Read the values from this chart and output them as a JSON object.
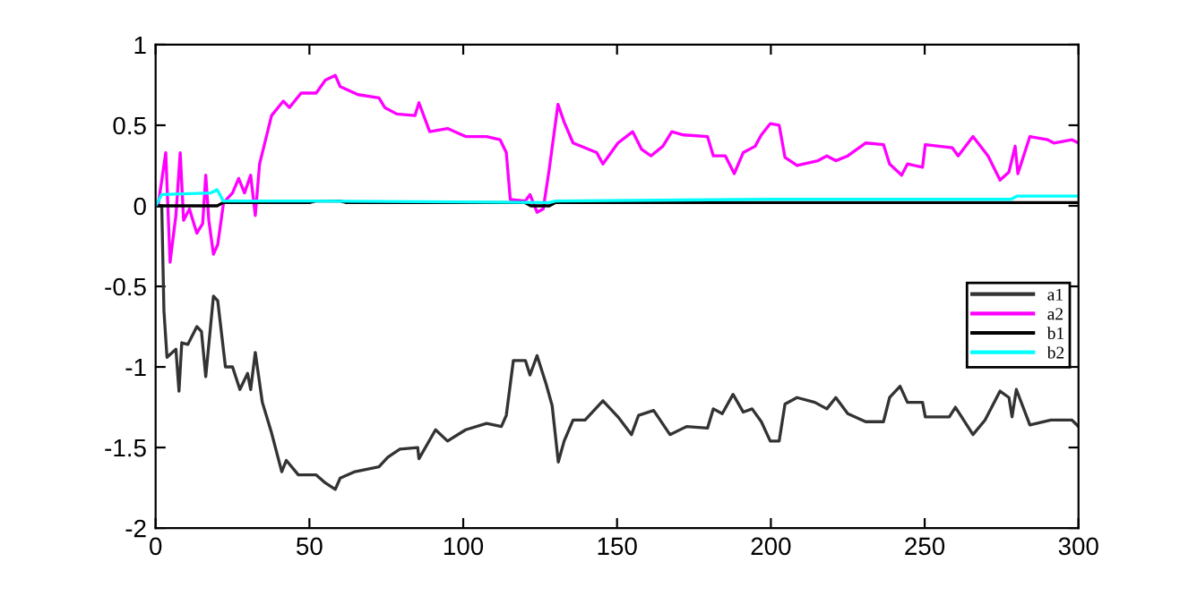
{
  "chart_data": {
    "type": "line",
    "xlim": [
      0,
      300
    ],
    "ylim": [
      -2,
      1
    ],
    "xticks": [
      0,
      50,
      100,
      150,
      200,
      250,
      300
    ],
    "yticks": [
      -2,
      -1.5,
      -1,
      -0.5,
      0,
      0.5,
      1
    ],
    "grid": false,
    "legend": "right",
    "line_style": "solid",
    "series": [
      {
        "name": "a1",
        "color": "#333333",
        "x": [
          0,
          2,
          2.7,
          3.7,
          6.6,
          7.6,
          8.5,
          10.5,
          13.4,
          14.9,
          16.3,
          18.8,
          20.2,
          22.7,
          25,
          27.4,
          29.9,
          30.9,
          32.4,
          34.7,
          37.7,
          41,
          42.5,
          46.4,
          52.2,
          55.2,
          58.4,
          60,
          64.8,
          72.6,
          75.5,
          79.4,
          85.2,
          85.6,
          91,
          94.9,
          100.8,
          107.6,
          112.4,
          114,
          116.3,
          120.2,
          121.7,
          124,
          127,
          128.9,
          130.9,
          132.8,
          135.7,
          139.6,
          145.4,
          150.3,
          154.7,
          157,
          161.9,
          167.2,
          172.6,
          179.4,
          181.3,
          184.2,
          187.7,
          191,
          193.9,
          196.9,
          199.8,
          202.7,
          204.6,
          208.5,
          214.3,
          218.2,
          221.1,
          225,
          230.8,
          236.6,
          238.6,
          242,
          244.4,
          249.3,
          250.2,
          258,
          260,
          265.7,
          269.6,
          274.5,
          277.4,
          278.4,
          279.8,
          284.2,
          291,
          297.9,
          300
        ],
        "values": [
          0,
          0,
          -0.65,
          -0.94,
          -0.89,
          -1.15,
          -0.85,
          -0.86,
          -0.75,
          -0.78,
          -1.06,
          -0.56,
          -0.59,
          -1.0,
          -1.0,
          -1.14,
          -1.04,
          -1.14,
          -0.91,
          -1.22,
          -1.41,
          -1.65,
          -1.58,
          -1.67,
          -1.67,
          -1.72,
          -1.76,
          -1.69,
          -1.65,
          -1.62,
          -1.56,
          -1.51,
          -1.5,
          -1.57,
          -1.39,
          -1.46,
          -1.39,
          -1.35,
          -1.37,
          -1.3,
          -0.96,
          -0.96,
          -1.05,
          -0.93,
          -1.11,
          -1.24,
          -1.59,
          -1.46,
          -1.33,
          -1.33,
          -1.21,
          -1.31,
          -1.42,
          -1.3,
          -1.27,
          -1.42,
          -1.37,
          -1.38,
          -1.26,
          -1.29,
          -1.17,
          -1.28,
          -1.26,
          -1.34,
          -1.46,
          -1.46,
          -1.23,
          -1.19,
          -1.22,
          -1.26,
          -1.19,
          -1.29,
          -1.34,
          -1.34,
          -1.19,
          -1.12,
          -1.22,
          -1.22,
          -1.31,
          -1.31,
          -1.25,
          -1.42,
          -1.33,
          -1.15,
          -1.19,
          -1.31,
          -1.14,
          -1.36,
          -1.33,
          -1.33,
          -1.37
        ]
      },
      {
        "name": "a2",
        "color": "#ff00ff",
        "x": [
          0,
          0.8,
          3.3,
          4.7,
          6.6,
          8,
          9.1,
          11,
          13.4,
          15.3,
          16.3,
          17.3,
          18.8,
          20.2,
          22.1,
          25,
          27,
          28.9,
          30.9,
          32.4,
          33.8,
          37.7,
          41.5,
          43.5,
          47.3,
          52.2,
          55.2,
          58.4,
          60,
          65.8,
          72.6,
          74.5,
          78.4,
          84.3,
          85.6,
          89.1,
          94.9,
          100.8,
          107.6,
          112,
          114,
          115.3,
          120.2,
          121.7,
          124,
          126,
          127.9,
          130.8,
          132.8,
          135.7,
          143.4,
          145.4,
          150.3,
          155.1,
          158,
          161,
          164.9,
          167.8,
          171.6,
          179.4,
          181.3,
          185.2,
          188.1,
          191,
          194.9,
          196.9,
          199.8,
          202.7,
          204.6,
          208.5,
          215.3,
          218.2,
          221.1,
          225,
          230.8,
          236.6,
          238.6,
          242.5,
          244.4,
          249.3,
          250.2,
          259,
          260.9,
          265.7,
          270.6,
          274.5,
          277.4,
          279.4,
          280.3,
          284.2,
          290,
          292,
          297.9,
          300
        ],
        "values": [
          0,
          0,
          0.33,
          -0.35,
          -0.06,
          0.33,
          -0.09,
          -0.02,
          -0.17,
          -0.11,
          0.19,
          -0.09,
          -0.3,
          -0.24,
          0.02,
          0.08,
          0.17,
          0.08,
          0.19,
          -0.06,
          0.26,
          0.56,
          0.65,
          0.61,
          0.7,
          0.7,
          0.78,
          0.81,
          0.74,
          0.69,
          0.67,
          0.61,
          0.57,
          0.56,
          0.64,
          0.46,
          0.48,
          0.43,
          0.43,
          0.41,
          0.33,
          0.04,
          0.03,
          0.07,
          -0.04,
          -0.02,
          0.22,
          0.63,
          0.52,
          0.39,
          0.33,
          0.26,
          0.39,
          0.46,
          0.35,
          0.31,
          0.37,
          0.46,
          0.44,
          0.43,
          0.31,
          0.31,
          0.2,
          0.33,
          0.37,
          0.44,
          0.51,
          0.5,
          0.3,
          0.25,
          0.28,
          0.31,
          0.28,
          0.31,
          0.39,
          0.38,
          0.26,
          0.19,
          0.26,
          0.24,
          0.38,
          0.36,
          0.31,
          0.43,
          0.31,
          0.16,
          0.21,
          0.37,
          0.2,
          0.43,
          0.41,
          0.39,
          0.41,
          0.39
        ]
      },
      {
        "name": "b1",
        "color": "#000000",
        "x": [
          0,
          20,
          22,
          50,
          52,
          60,
          62,
          120,
          122,
          128,
          130,
          200,
          300
        ],
        "values": [
          0,
          0,
          0.02,
          0.02,
          0.03,
          0.03,
          0.02,
          0.02,
          0,
          0,
          0.02,
          0.02,
          0.02
        ]
      },
      {
        "name": "b2",
        "color": "#00ffff",
        "x": [
          0,
          2,
          18,
          20,
          22,
          50,
          128,
          130,
          200,
          278,
          280,
          300
        ],
        "values": [
          0,
          0.07,
          0.08,
          0.1,
          0.03,
          0.03,
          0.02,
          0.03,
          0.04,
          0.04,
          0.06,
          0.06
        ]
      }
    ]
  }
}
